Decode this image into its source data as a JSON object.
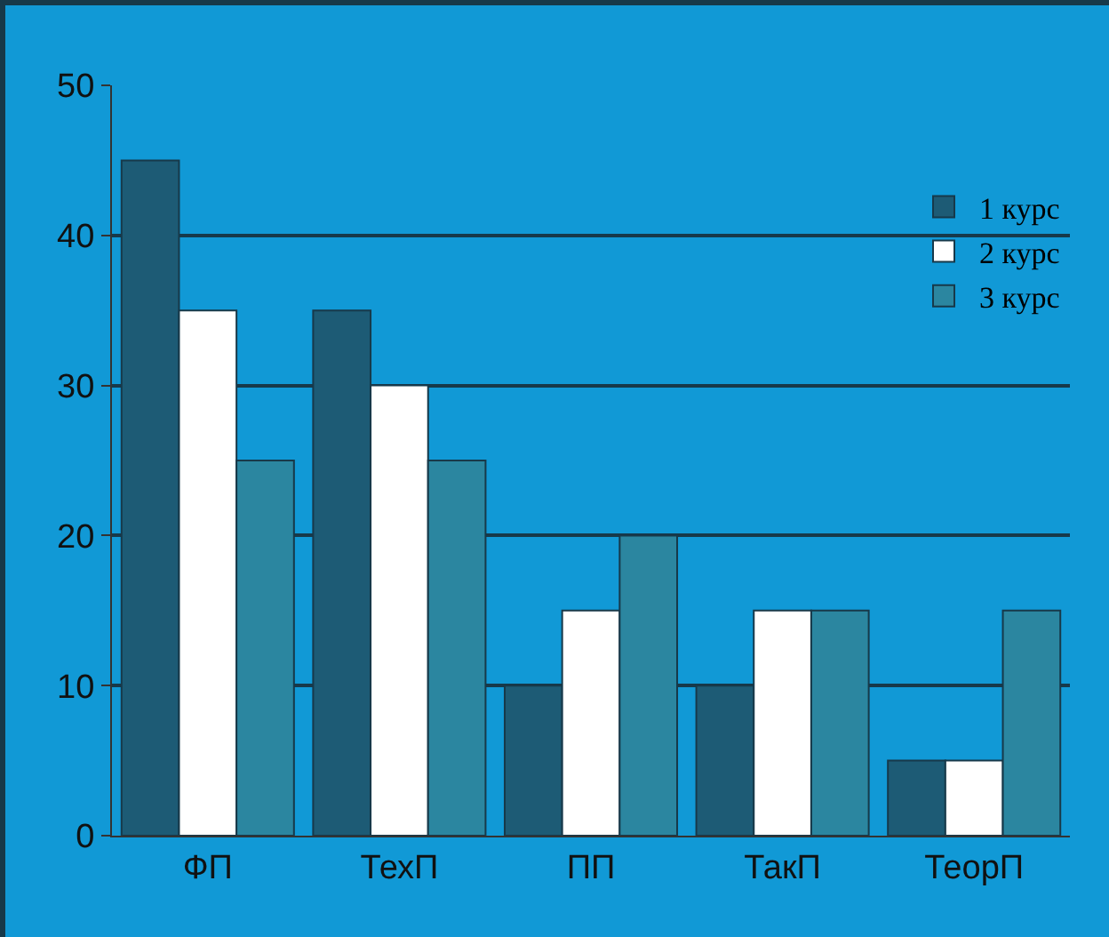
{
  "chart_data": {
    "type": "bar",
    "categories": [
      "ФП",
      "ТехП",
      "ПП",
      "ТакП",
      "ТеорП"
    ],
    "series": [
      {
        "name": "1 курс",
        "color": "#1d5b75",
        "values": [
          45,
          35,
          10,
          10,
          5
        ]
      },
      {
        "name": "2 курс",
        "color": "#ffffff",
        "values": [
          35,
          30,
          15,
          15,
          5
        ]
      },
      {
        "name": "3 курс",
        "color": "#2b86a0",
        "values": [
          25,
          25,
          20,
          15,
          15
        ]
      }
    ],
    "ylim": [
      0,
      50
    ],
    "yticks": [
      0,
      10,
      20,
      30,
      40,
      50
    ],
    "grid": "y",
    "legend": "top right"
  }
}
